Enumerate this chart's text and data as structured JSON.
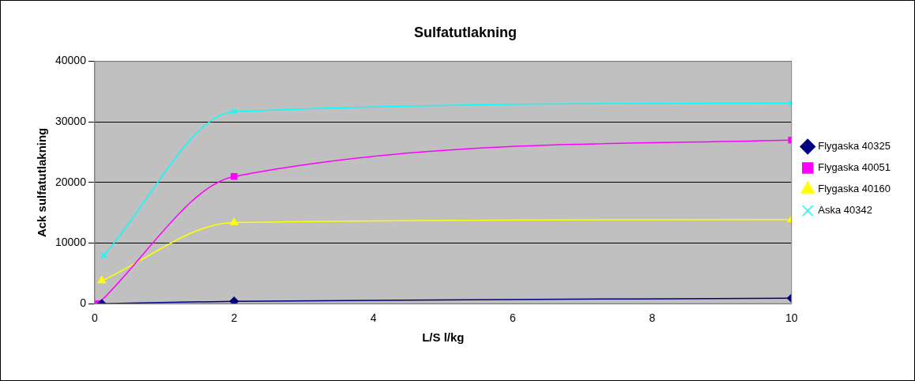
{
  "chart_data": {
    "type": "line",
    "title": "Sulfatutlakning",
    "xlabel": "L/S l/kg",
    "ylabel": "Ack sulfatutlakning",
    "xlim": [
      0,
      10
    ],
    "xticks": [
      0,
      2,
      4,
      6,
      8,
      10
    ],
    "ylim": [
      0,
      40000
    ],
    "yticks": [
      0,
      10000,
      20000,
      30000,
      40000
    ],
    "grid": "y",
    "legend": "right",
    "line_style": "solid",
    "series": [
      {
        "name": "Flygaska 40325",
        "color": "#000080",
        "marker": "diamond",
        "x": [
          0.1,
          2,
          10
        ],
        "values": [
          0,
          400,
          900
        ]
      },
      {
        "name": "Flygaska 40051",
        "color": "#ff00ff",
        "marker": "square",
        "x": [
          0.05,
          2,
          10
        ],
        "values": [
          0,
          21000,
          27000
        ]
      },
      {
        "name": "Flygaska 40160",
        "color": "#ffff00",
        "marker": "triangle",
        "x": [
          0.1,
          2,
          10
        ],
        "values": [
          3800,
          13400,
          13900
        ]
      },
      {
        "name": "Aska 40342",
        "color": "#00ffff",
        "marker": "cross",
        "x": [
          0.13,
          2,
          10
        ],
        "values": [
          8000,
          31700,
          33100
        ]
      }
    ]
  }
}
